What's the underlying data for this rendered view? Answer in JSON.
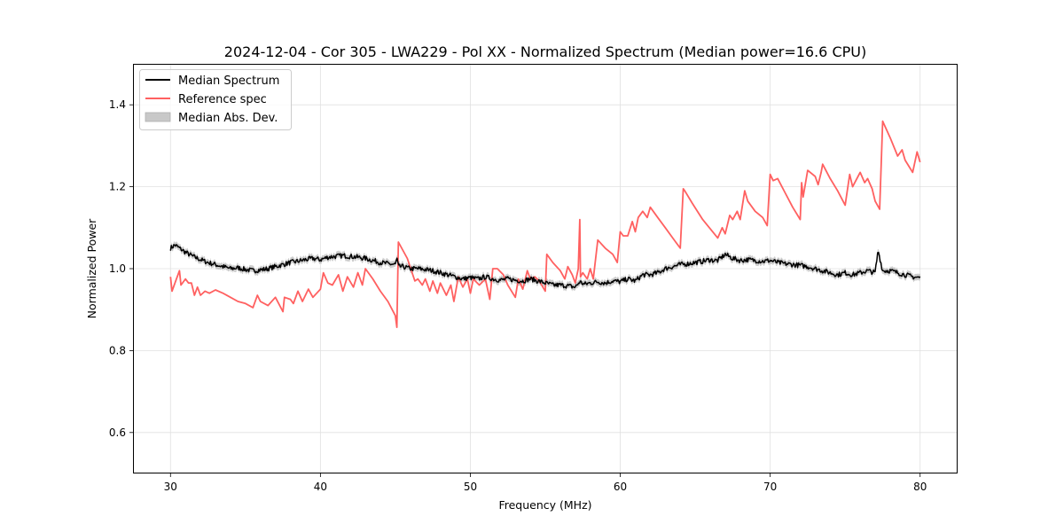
{
  "chart_data": {
    "type": "line",
    "title": "2024-12-04 - Cor 305 - LWA229 - Pol XX - Normalized Spectrum (Median power=16.6 CPU)",
    "xlabel": "Frequency (MHz)",
    "ylabel": "Normalized Power",
    "xlim": [
      27.5,
      82.5
    ],
    "ylim": [
      0.5,
      1.5
    ],
    "xticks": [
      30,
      40,
      50,
      60,
      70,
      80
    ],
    "xtick_labels": [
      "30",
      "40",
      "50",
      "60",
      "70",
      "80"
    ],
    "yticks": [
      0.6,
      0.8,
      1.0,
      1.2,
      1.4
    ],
    "ytick_labels": [
      "0.6",
      "0.8",
      "1.0",
      "1.2",
      "1.4"
    ],
    "grid": true,
    "legend_position": "top-left",
    "legend": [
      {
        "label": "Median Spectrum",
        "kind": "line",
        "color": "#000000"
      },
      {
        "label": "Reference spec",
        "kind": "line",
        "color": "#ff6060"
      },
      {
        "label": "Median Abs. Dev.",
        "kind": "patch",
        "color": "#c8c8c8"
      }
    ],
    "series": [
      {
        "name": "Median Spectrum",
        "color": "#000000",
        "mad_band": 0.008,
        "x": [
          30.0,
          30.3,
          30.6,
          31.0,
          31.5,
          32.0,
          32.5,
          33.0,
          33.5,
          34.0,
          34.5,
          35.0,
          35.5,
          36.0,
          36.5,
          37.0,
          37.5,
          38.0,
          38.5,
          39.0,
          39.5,
          40.0,
          40.5,
          41.0,
          41.5,
          42.0,
          42.5,
          43.0,
          43.5,
          44.0,
          44.5,
          45.0,
          45.1,
          45.2,
          45.5,
          46.0,
          46.5,
          47.0,
          47.5,
          48.0,
          48.5,
          49.0,
          49.5,
          50.0,
          50.5,
          51.0,
          51.5,
          52.0,
          52.5,
          53.0,
          53.5,
          54.0,
          54.5,
          55.0,
          55.5,
          56.0,
          56.5,
          57.0,
          57.3,
          57.6,
          58.0,
          58.5,
          59.0,
          59.5,
          60.0,
          60.5,
          61.0,
          61.5,
          62.0,
          62.5,
          63.0,
          63.5,
          64.0,
          64.5,
          65.0,
          65.5,
          66.0,
          66.2,
          66.5,
          67.0,
          67.5,
          68.0,
          68.5,
          69.0,
          69.5,
          70.0,
          70.5,
          71.0,
          71.5,
          72.0,
          72.5,
          73.0,
          73.5,
          74.0,
          74.5,
          75.0,
          75.5,
          76.0,
          76.5,
          77.0,
          77.2,
          77.5,
          78.0,
          78.5,
          79.0,
          79.5,
          80.0
        ],
        "y": [
          1.05,
          1.058,
          1.05,
          1.04,
          1.03,
          1.022,
          1.015,
          1.01,
          1.005,
          1.0,
          1.002,
          0.998,
          0.995,
          0.997,
          1.0,
          1.005,
          1.01,
          1.015,
          1.018,
          1.022,
          1.025,
          1.022,
          1.028,
          1.03,
          1.032,
          1.03,
          1.028,
          1.025,
          1.02,
          1.015,
          1.012,
          1.01,
          1.025,
          1.005,
          1.005,
          1.0,
          1.0,
          0.998,
          0.995,
          0.99,
          0.985,
          0.98,
          0.975,
          0.978,
          0.975,
          0.98,
          0.975,
          0.972,
          0.975,
          0.972,
          0.97,
          0.975,
          0.97,
          0.965,
          0.96,
          0.96,
          0.958,
          0.955,
          0.968,
          0.962,
          0.965,
          0.968,
          0.965,
          0.97,
          0.968,
          0.975,
          0.97,
          0.985,
          0.985,
          0.99,
          1.0,
          1.005,
          1.01,
          1.012,
          1.015,
          1.018,
          1.022,
          1.02,
          1.02,
          1.035,
          1.025,
          1.02,
          1.022,
          1.02,
          1.018,
          1.02,
          1.015,
          1.012,
          1.01,
          1.008,
          1.005,
          1.0,
          0.995,
          0.99,
          0.985,
          0.99,
          0.985,
          0.99,
          0.995,
          0.99,
          1.045,
          0.995,
          0.995,
          0.99,
          0.985,
          0.98,
          0.978
        ]
      },
      {
        "name": "Reference spec",
        "color": "#ff6060",
        "x": [
          30.0,
          30.1,
          30.4,
          30.6,
          30.7,
          31.0,
          31.2,
          31.4,
          31.6,
          31.8,
          32.0,
          32.3,
          32.6,
          33.0,
          33.5,
          34.0,
          34.5,
          35.0,
          35.5,
          35.8,
          36.0,
          36.5,
          37.0,
          37.5,
          37.6,
          38.0,
          38.2,
          38.5,
          38.8,
          39.2,
          39.5,
          40.0,
          40.2,
          40.5,
          40.8,
          41.2,
          41.5,
          41.8,
          42.2,
          42.5,
          42.8,
          43.0,
          43.5,
          44.0,
          44.5,
          45.0,
          45.1,
          45.2,
          45.8,
          46.3,
          46.5,
          46.8,
          47.0,
          47.3,
          47.5,
          47.8,
          48.0,
          48.4,
          48.7,
          48.9,
          49.2,
          49.5,
          49.8,
          50.0,
          50.2,
          50.6,
          51.0,
          51.3,
          51.5,
          51.8,
          52.2,
          52.5,
          53.0,
          53.2,
          53.5,
          53.8,
          54.0,
          54.3,
          54.6,
          55.0,
          55.1,
          55.5,
          56.0,
          56.3,
          56.5,
          56.8,
          57.0,
          57.2,
          57.3,
          57.35,
          57.5,
          57.8,
          58.0,
          58.2,
          58.5,
          59.0,
          59.5,
          59.8,
          60.0,
          60.2,
          60.5,
          60.8,
          61.0,
          61.2,
          61.5,
          61.8,
          62.0,
          62.5,
          63.0,
          63.5,
          64.0,
          64.2,
          64.3,
          64.8,
          65.5,
          66.5,
          66.8,
          67.0,
          67.3,
          67.5,
          67.8,
          68.0,
          68.3,
          68.5,
          69.0,
          69.5,
          69.8,
          70.0,
          70.2,
          70.5,
          71.0,
          71.5,
          72.0,
          72.1,
          72.2,
          72.5,
          73.0,
          73.2,
          73.4,
          73.5,
          74.0,
          74.5,
          75.0,
          75.3,
          75.5,
          76.0,
          76.3,
          76.5,
          76.8,
          77.0,
          77.3,
          77.5,
          78.0,
          78.5,
          78.8,
          79.0,
          79.5,
          79.8,
          80.0
        ],
        "y": [
          0.98,
          0.945,
          0.975,
          0.995,
          0.96,
          0.975,
          0.965,
          0.965,
          0.935,
          0.955,
          0.935,
          0.945,
          0.94,
          0.948,
          0.94,
          0.93,
          0.92,
          0.915,
          0.905,
          0.935,
          0.92,
          0.91,
          0.93,
          0.895,
          0.93,
          0.925,
          0.915,
          0.945,
          0.92,
          0.95,
          0.93,
          0.95,
          0.99,
          0.965,
          0.96,
          0.985,
          0.945,
          0.98,
          0.955,
          0.99,
          0.96,
          1.0,
          0.975,
          0.945,
          0.92,
          0.885,
          0.857,
          1.065,
          1.025,
          0.97,
          0.975,
          0.96,
          0.975,
          0.945,
          0.97,
          0.94,
          0.965,
          0.935,
          0.96,
          0.92,
          0.98,
          0.955,
          0.975,
          0.94,
          0.975,
          0.96,
          0.975,
          0.925,
          1.0,
          1.0,
          0.985,
          0.96,
          0.93,
          0.975,
          0.95,
          0.995,
          0.975,
          0.98,
          0.97,
          0.945,
          1.035,
          1.015,
          0.995,
          0.975,
          1.005,
          0.985,
          0.965,
          1.0,
          1.12,
          0.98,
          0.99,
          0.975,
          1.0,
          0.975,
          1.07,
          1.05,
          1.035,
          1.015,
          1.09,
          1.08,
          1.08,
          1.115,
          1.09,
          1.125,
          1.14,
          1.125,
          1.15,
          1.125,
          1.1,
          1.075,
          1.05,
          1.195,
          1.19,
          1.16,
          1.12,
          1.075,
          1.1,
          1.085,
          1.13,
          1.12,
          1.14,
          1.12,
          1.19,
          1.165,
          1.14,
          1.125,
          1.105,
          1.23,
          1.215,
          1.22,
          1.185,
          1.15,
          1.12,
          1.21,
          1.175,
          1.24,
          1.225,
          1.205,
          1.235,
          1.255,
          1.22,
          1.19,
          1.155,
          1.23,
          1.2,
          1.235,
          1.21,
          1.22,
          1.195,
          1.165,
          1.145,
          1.36,
          1.32,
          1.275,
          1.29,
          1.265,
          1.235,
          1.285,
          1.26
        ]
      }
    ]
  }
}
